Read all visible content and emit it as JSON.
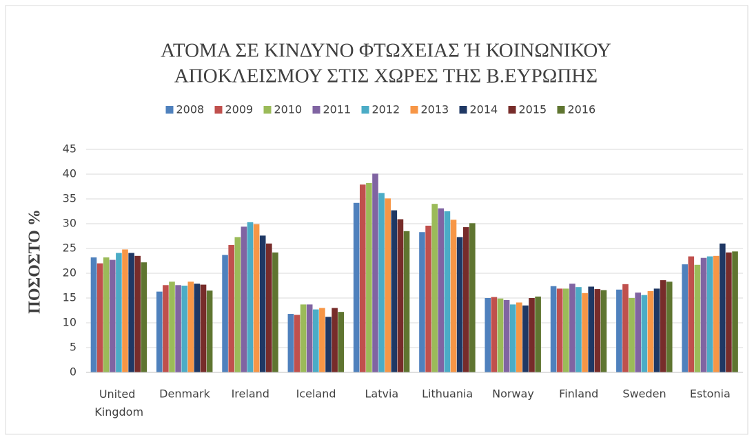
{
  "chart_data": {
    "type": "bar",
    "title": [
      "ΑΤΟΜΑ ΣΕ ΚΙΝΔΥΝΟ ΦΤΩΧΕΙΑΣ Ή ΚΟΙΝΩΝΙΚΟΥ",
      "ΑΠΟΚΛΕΙΣΜΟΥ ΣΤΙΣ ΧΩΡΕΣ ΤΗΣ Β.ΕΥΡΩΠΗΣ"
    ],
    "y_label": "ΠΟΣΟΣΤΟ %",
    "categories": [
      "United Kingdom",
      "Denmark",
      "Ireland",
      "Iceland",
      "Latvia",
      "Lithuania",
      "Norway",
      "Finland",
      "Sweden",
      "Estonia"
    ],
    "series": [
      {
        "name": "2008",
        "color": "#4f81bd",
        "values": [
          23.2,
          16.3,
          23.7,
          11.8,
          34.2,
          28.3,
          15.0,
          17.4,
          16.7,
          21.8
        ]
      },
      {
        "name": "2009",
        "color": "#c0504d",
        "values": [
          22.0,
          17.6,
          25.7,
          11.6,
          37.9,
          29.6,
          15.2,
          16.9,
          17.8,
          23.4
        ]
      },
      {
        "name": "2010",
        "color": "#9bbb59",
        "values": [
          23.2,
          18.3,
          27.3,
          13.7,
          38.2,
          34.0,
          14.9,
          16.9,
          15.0,
          21.7
        ]
      },
      {
        "name": "2011",
        "color": "#8064a2",
        "values": [
          22.7,
          17.6,
          29.4,
          13.7,
          40.1,
          33.1,
          14.6,
          17.9,
          16.1,
          23.1
        ]
      },
      {
        "name": "2012",
        "color": "#4bacc6",
        "values": [
          24.1,
          17.5,
          30.3,
          12.7,
          36.2,
          32.5,
          13.7,
          17.2,
          15.6,
          23.4
        ]
      },
      {
        "name": "2013",
        "color": "#f79646",
        "values": [
          24.8,
          18.3,
          29.9,
          13.0,
          35.1,
          30.8,
          14.1,
          16.0,
          16.4,
          23.5
        ]
      },
      {
        "name": "2014",
        "color": "#1f3864",
        "values": [
          24.1,
          17.9,
          27.6,
          11.2,
          32.7,
          27.3,
          13.5,
          17.3,
          16.9,
          26.0
        ]
      },
      {
        "name": "2015",
        "color": "#772c2a",
        "values": [
          23.5,
          17.7,
          26.0,
          13.0,
          30.9,
          29.3,
          15.0,
          16.8,
          18.6,
          24.2
        ]
      },
      {
        "name": "2016",
        "color": "#5f7530",
        "values": [
          22.2,
          16.5,
          24.2,
          12.2,
          28.5,
          30.1,
          15.3,
          16.6,
          18.3,
          24.4
        ]
      }
    ],
    "ylim": [
      0,
      45
    ],
    "yticks": [
      0,
      5,
      10,
      15,
      20,
      25,
      30,
      35,
      40,
      45
    ],
    "grid": true,
    "legend": "top"
  }
}
